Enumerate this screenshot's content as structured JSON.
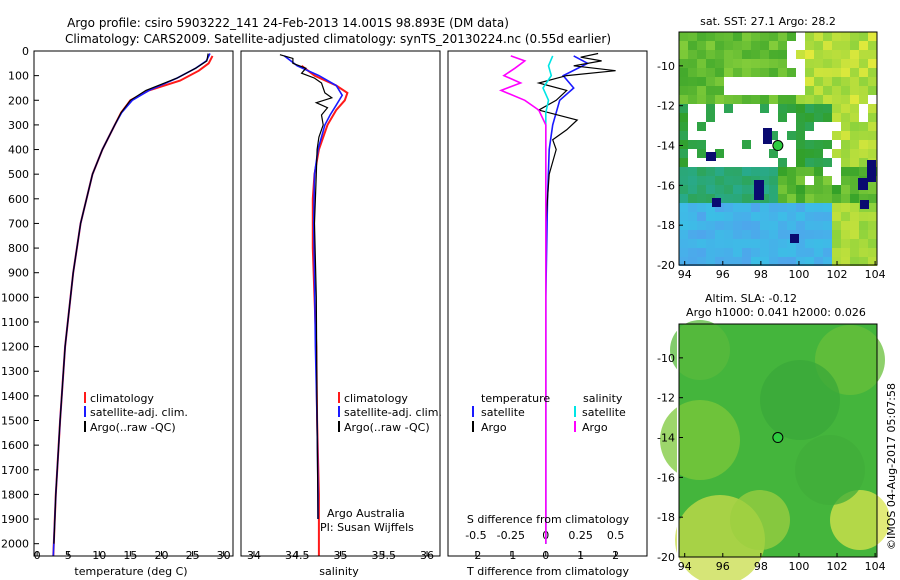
{
  "header": {
    "line1": "Argo profile: csiro 5903222_141 24-Feb-2013 14.001S 98.893E (DM data)",
    "line2": "Climatology: CARS2009. Satellite-adjusted climatology: synTS_20130224.nc (0.55d earlier)"
  },
  "colors": {
    "climatology": "#ff1a1a",
    "satellite": "#1a1aff",
    "argo": "#000000",
    "salinity_sat": "#00e5e5",
    "salinity_argo": "#ff00ff"
  },
  "chart_data": [
    {
      "type": "line",
      "name": "temperature-panel",
      "xlabel": "temperature (deg C)",
      "xlim": [
        -0.5,
        31.5
      ],
      "ylim": [
        2050,
        0
      ],
      "xticks": [
        0,
        5,
        10,
        15,
        20,
        25,
        30
      ],
      "yticks": [
        0,
        100,
        200,
        300,
        400,
        500,
        600,
        700,
        800,
        900,
        1000,
        1100,
        1200,
        1300,
        1400,
        1500,
        1600,
        1700,
        1800,
        1900,
        2000
      ],
      "legend": [
        "climatology",
        "satellite-adj. clim.",
        "Argo(..raw -QC)"
      ],
      "series": [
        {
          "name": "climatology",
          "depth": [
            20,
            50,
            80,
            120,
            160,
            200,
            250,
            300,
            400,
            500,
            700,
            900,
            1200,
            1500,
            1800,
            2050
          ],
          "values": [
            28.2,
            27.6,
            26,
            23,
            18,
            15,
            13.5,
            12.5,
            10.5,
            8.9,
            7,
            5.8,
            4.5,
            3.7,
            3,
            2.6
          ]
        },
        {
          "name": "satellite-adj. clim.",
          "depth": [
            10,
            40,
            70,
            110,
            160,
            200,
            250,
            300,
            400,
            500,
            700,
            900,
            1200,
            1500,
            1800,
            2050
          ],
          "values": [
            27.8,
            27.2,
            25.5,
            22.5,
            18,
            15.3,
            13.6,
            12.5,
            10.5,
            8.9,
            7,
            5.8,
            4.5,
            3.7,
            3,
            2.6
          ]
        },
        {
          "name": "Argo",
          "depth": [
            10,
            40,
            70,
            110,
            160,
            200,
            250,
            300,
            400,
            500,
            700,
            900,
            1200,
            1500,
            1800,
            2000
          ],
          "values": [
            27.5,
            27.3,
            25.5,
            22.5,
            17.5,
            15,
            13.5,
            12.5,
            10.5,
            8.9,
            7,
            5.8,
            4.5,
            3.7,
            3,
            2.7
          ]
        }
      ]
    },
    {
      "type": "line",
      "name": "salinity-panel",
      "xlabel": "salinity",
      "xlim": [
        33.85,
        36.15
      ],
      "ylim": [
        2050,
        0
      ],
      "xticks": [
        34,
        34.5,
        35,
        35.5,
        36
      ],
      "legend": [
        "climatology",
        "satellite-adj. clim.",
        "Argo(..raw -QC)"
      ],
      "annotations": [
        "Argo Australia",
        "PI: Susan Wijffels"
      ],
      "series": [
        {
          "name": "climatology",
          "depth": [
            60,
            100,
            140,
            170,
            200,
            240,
            300,
            400,
            500,
            600,
            800,
            1000,
            1200,
            1500,
            1800,
            2050
          ],
          "values": [
            34.55,
            34.7,
            34.95,
            35.08,
            35.05,
            34.95,
            34.85,
            34.75,
            34.7,
            34.68,
            34.68,
            34.7,
            34.72,
            34.73,
            34.75,
            34.75
          ]
        },
        {
          "name": "satellite-adj. clim.",
          "depth": [
            20,
            60,
            100,
            140,
            180,
            220,
            260,
            300,
            400,
            500,
            700,
            900,
            1200,
            1500,
            1800,
            1900
          ],
          "values": [
            34.35,
            34.5,
            34.75,
            34.95,
            35.02,
            34.95,
            34.88,
            34.82,
            34.74,
            34.7,
            34.69,
            34.7,
            34.71,
            34.73,
            34.74,
            34.74
          ]
        },
        {
          "name": "Argo",
          "depth": [
            15,
            30,
            50,
            70,
            90,
            110,
            130,
            150,
            170,
            190,
            210,
            230,
            260,
            300,
            350,
            400,
            500,
            700,
            1000,
            1500,
            1900
          ],
          "values": [
            34.3,
            34.45,
            34.45,
            34.6,
            34.55,
            34.7,
            34.78,
            34.8,
            34.82,
            34.9,
            34.72,
            34.85,
            34.78,
            34.8,
            34.75,
            34.73,
            34.72,
            34.7,
            34.72,
            34.73,
            34.74
          ]
        }
      ]
    },
    {
      "type": "line",
      "name": "difference-panel",
      "xlabel": "T difference from climatology",
      "xlabel2": "S difference from climatology",
      "xlim": [
        -2.8,
        2.9
      ],
      "ylim": [
        2050,
        0
      ],
      "xticks": [
        -2,
        -1,
        0,
        1,
        2
      ],
      "xticks_S": [
        -0.5,
        -0.25,
        0,
        0.25,
        0.5
      ],
      "legend_left": {
        "title": "temperature",
        "items": [
          "satellite",
          "Argo"
        ]
      },
      "legend_right": {
        "title": "salinity",
        "items": [
          "satellite",
          "Argo"
        ]
      },
      "series": [
        {
          "name": "T satellite",
          "depth": [
            20,
            50,
            100,
            150,
            200,
            300,
            400,
            600,
            1000,
            1500,
            2000
          ],
          "values": [
            0.8,
            1.2,
            0.5,
            0.8,
            0.4,
            0.2,
            0.1,
            0.05,
            0,
            0,
            0
          ]
        },
        {
          "name": "T Argo",
          "depth": [
            10,
            25,
            40,
            60,
            80,
            100,
            130,
            160,
            200,
            240,
            280,
            320,
            360,
            400,
            500,
            700,
            1000,
            1500,
            2000
          ],
          "values": [
            1.5,
            1.0,
            1.6,
            0.8,
            2.0,
            0.6,
            -0.2,
            0.6,
            0.3,
            -0.2,
            0.9,
            0.6,
            0.2,
            0.3,
            0.1,
            0,
            0,
            0,
            0
          ]
        },
        {
          "name": "S satellite",
          "depth": [
            20,
            60,
            100,
            150,
            200,
            250,
            300,
            500,
            1000,
            2000
          ],
          "values": [
            0.05,
            0.02,
            0.04,
            -0.02,
            0.02,
            0,
            0,
            0,
            0,
            0
          ]
        },
        {
          "name": "S Argo",
          "depth": [
            20,
            40,
            70,
            100,
            130,
            160,
            200,
            240,
            300,
            500,
            1000,
            2000
          ],
          "values": [
            -0.25,
            -0.15,
            -0.22,
            -0.3,
            -0.18,
            -0.32,
            -0.15,
            -0.05,
            0,
            0,
            0,
            0
          ]
        }
      ]
    },
    {
      "type": "heatmap",
      "name": "sst-map",
      "title": "sat. SST: 27.1  Argo: 28.2",
      "xlim": [
        93.7,
        104.1
      ],
      "ylim": [
        -20,
        -8.3
      ],
      "xticks": [
        94,
        96,
        98,
        100,
        102,
        104
      ],
      "yticks": [
        -10,
        -12,
        -14,
        -16,
        -18,
        -20
      ],
      "marker": {
        "lon": 98.893,
        "lat": -14.001
      }
    },
    {
      "type": "heatmap",
      "name": "sla-map",
      "title": "Altim. SLA: -0.12",
      "subtitle": "Argo h1000: 0.041  h2000: 0.026",
      "xlim": [
        93.7,
        104.1
      ],
      "ylim": [
        -20,
        -8.3
      ],
      "xticks": [
        94,
        96,
        98,
        100,
        102,
        104
      ],
      "yticks": [
        -10,
        -12,
        -14,
        -16,
        -18,
        -20
      ],
      "marker": {
        "lon": 98.893,
        "lat": -14.001
      }
    }
  ],
  "footer": {
    "credit": "©IMOS 04-Aug-2017 05:07:58"
  }
}
